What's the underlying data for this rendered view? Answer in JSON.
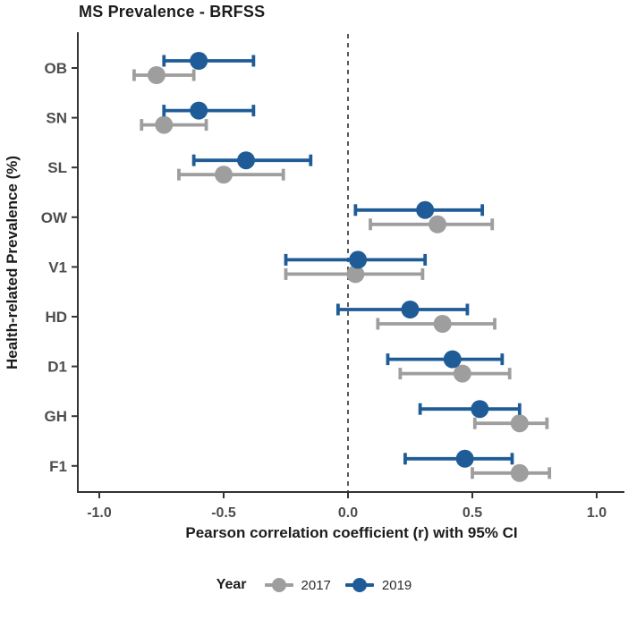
{
  "chart_data": {
    "type": "scatter",
    "subtype": "forest-dot-ci",
    "title": "MS Prevalence - BRFSS",
    "xlabel": "Pearson correlation coefficient (r) with 95% CI",
    "ylabel": "Health-related Prevalence (%)",
    "xlim": [
      -1.08,
      1.12
    ],
    "x_ticks": [
      -1.0,
      -0.5,
      0.0,
      0.5,
      1.0
    ],
    "x_tick_labels": [
      "-1.0",
      "-0.5",
      "0.0",
      "0.5",
      "1.0"
    ],
    "zero_line": 0.0,
    "grid": "off",
    "categories": [
      "OB",
      "SN",
      "SL",
      "OW",
      "V1",
      "HD",
      "D1",
      "GH",
      "F1"
    ],
    "series": [
      {
        "name": "2017",
        "color": "#9e9e9e",
        "values": [
          {
            "cat": "OB",
            "r": -0.77,
            "lo": -0.86,
            "hi": -0.62
          },
          {
            "cat": "SN",
            "r": -0.74,
            "lo": -0.83,
            "hi": -0.57
          },
          {
            "cat": "SL",
            "r": -0.5,
            "lo": -0.68,
            "hi": -0.26
          },
          {
            "cat": "OW",
            "r": 0.36,
            "lo": 0.09,
            "hi": 0.58
          },
          {
            "cat": "V1",
            "r": 0.03,
            "lo": -0.25,
            "hi": 0.3
          },
          {
            "cat": "HD",
            "r": 0.38,
            "lo": 0.12,
            "hi": 0.59
          },
          {
            "cat": "D1",
            "r": 0.46,
            "lo": 0.21,
            "hi": 0.65
          },
          {
            "cat": "GH",
            "r": 0.69,
            "lo": 0.51,
            "hi": 0.8
          },
          {
            "cat": "F1",
            "r": 0.69,
            "lo": 0.5,
            "hi": 0.81
          }
        ]
      },
      {
        "name": "2019",
        "color": "#1f5c97",
        "values": [
          {
            "cat": "OB",
            "r": -0.6,
            "lo": -0.74,
            "hi": -0.38
          },
          {
            "cat": "SN",
            "r": -0.6,
            "lo": -0.74,
            "hi": -0.38
          },
          {
            "cat": "SL",
            "r": -0.41,
            "lo": -0.62,
            "hi": -0.15
          },
          {
            "cat": "OW",
            "r": 0.31,
            "lo": 0.03,
            "hi": 0.54
          },
          {
            "cat": "V1",
            "r": 0.04,
            "lo": -0.25,
            "hi": 0.31
          },
          {
            "cat": "HD",
            "r": 0.25,
            "lo": -0.04,
            "hi": 0.48
          },
          {
            "cat": "D1",
            "r": 0.42,
            "lo": 0.16,
            "hi": 0.62
          },
          {
            "cat": "GH",
            "r": 0.53,
            "lo": 0.29,
            "hi": 0.69
          },
          {
            "cat": "F1",
            "r": 0.47,
            "lo": 0.23,
            "hi": 0.66
          }
        ]
      }
    ],
    "legend": {
      "title": "Year",
      "position": "bottom",
      "entries": [
        {
          "label": "2017",
          "color": "#9e9e9e"
        },
        {
          "label": "2019",
          "color": "#1f5c97"
        }
      ]
    },
    "style": {
      "axis_color": "#333333",
      "tick_label_color": "#4d4d4d",
      "category_label_color": "#4d4d4d",
      "zero_line_color": "#3a3a3a"
    }
  }
}
